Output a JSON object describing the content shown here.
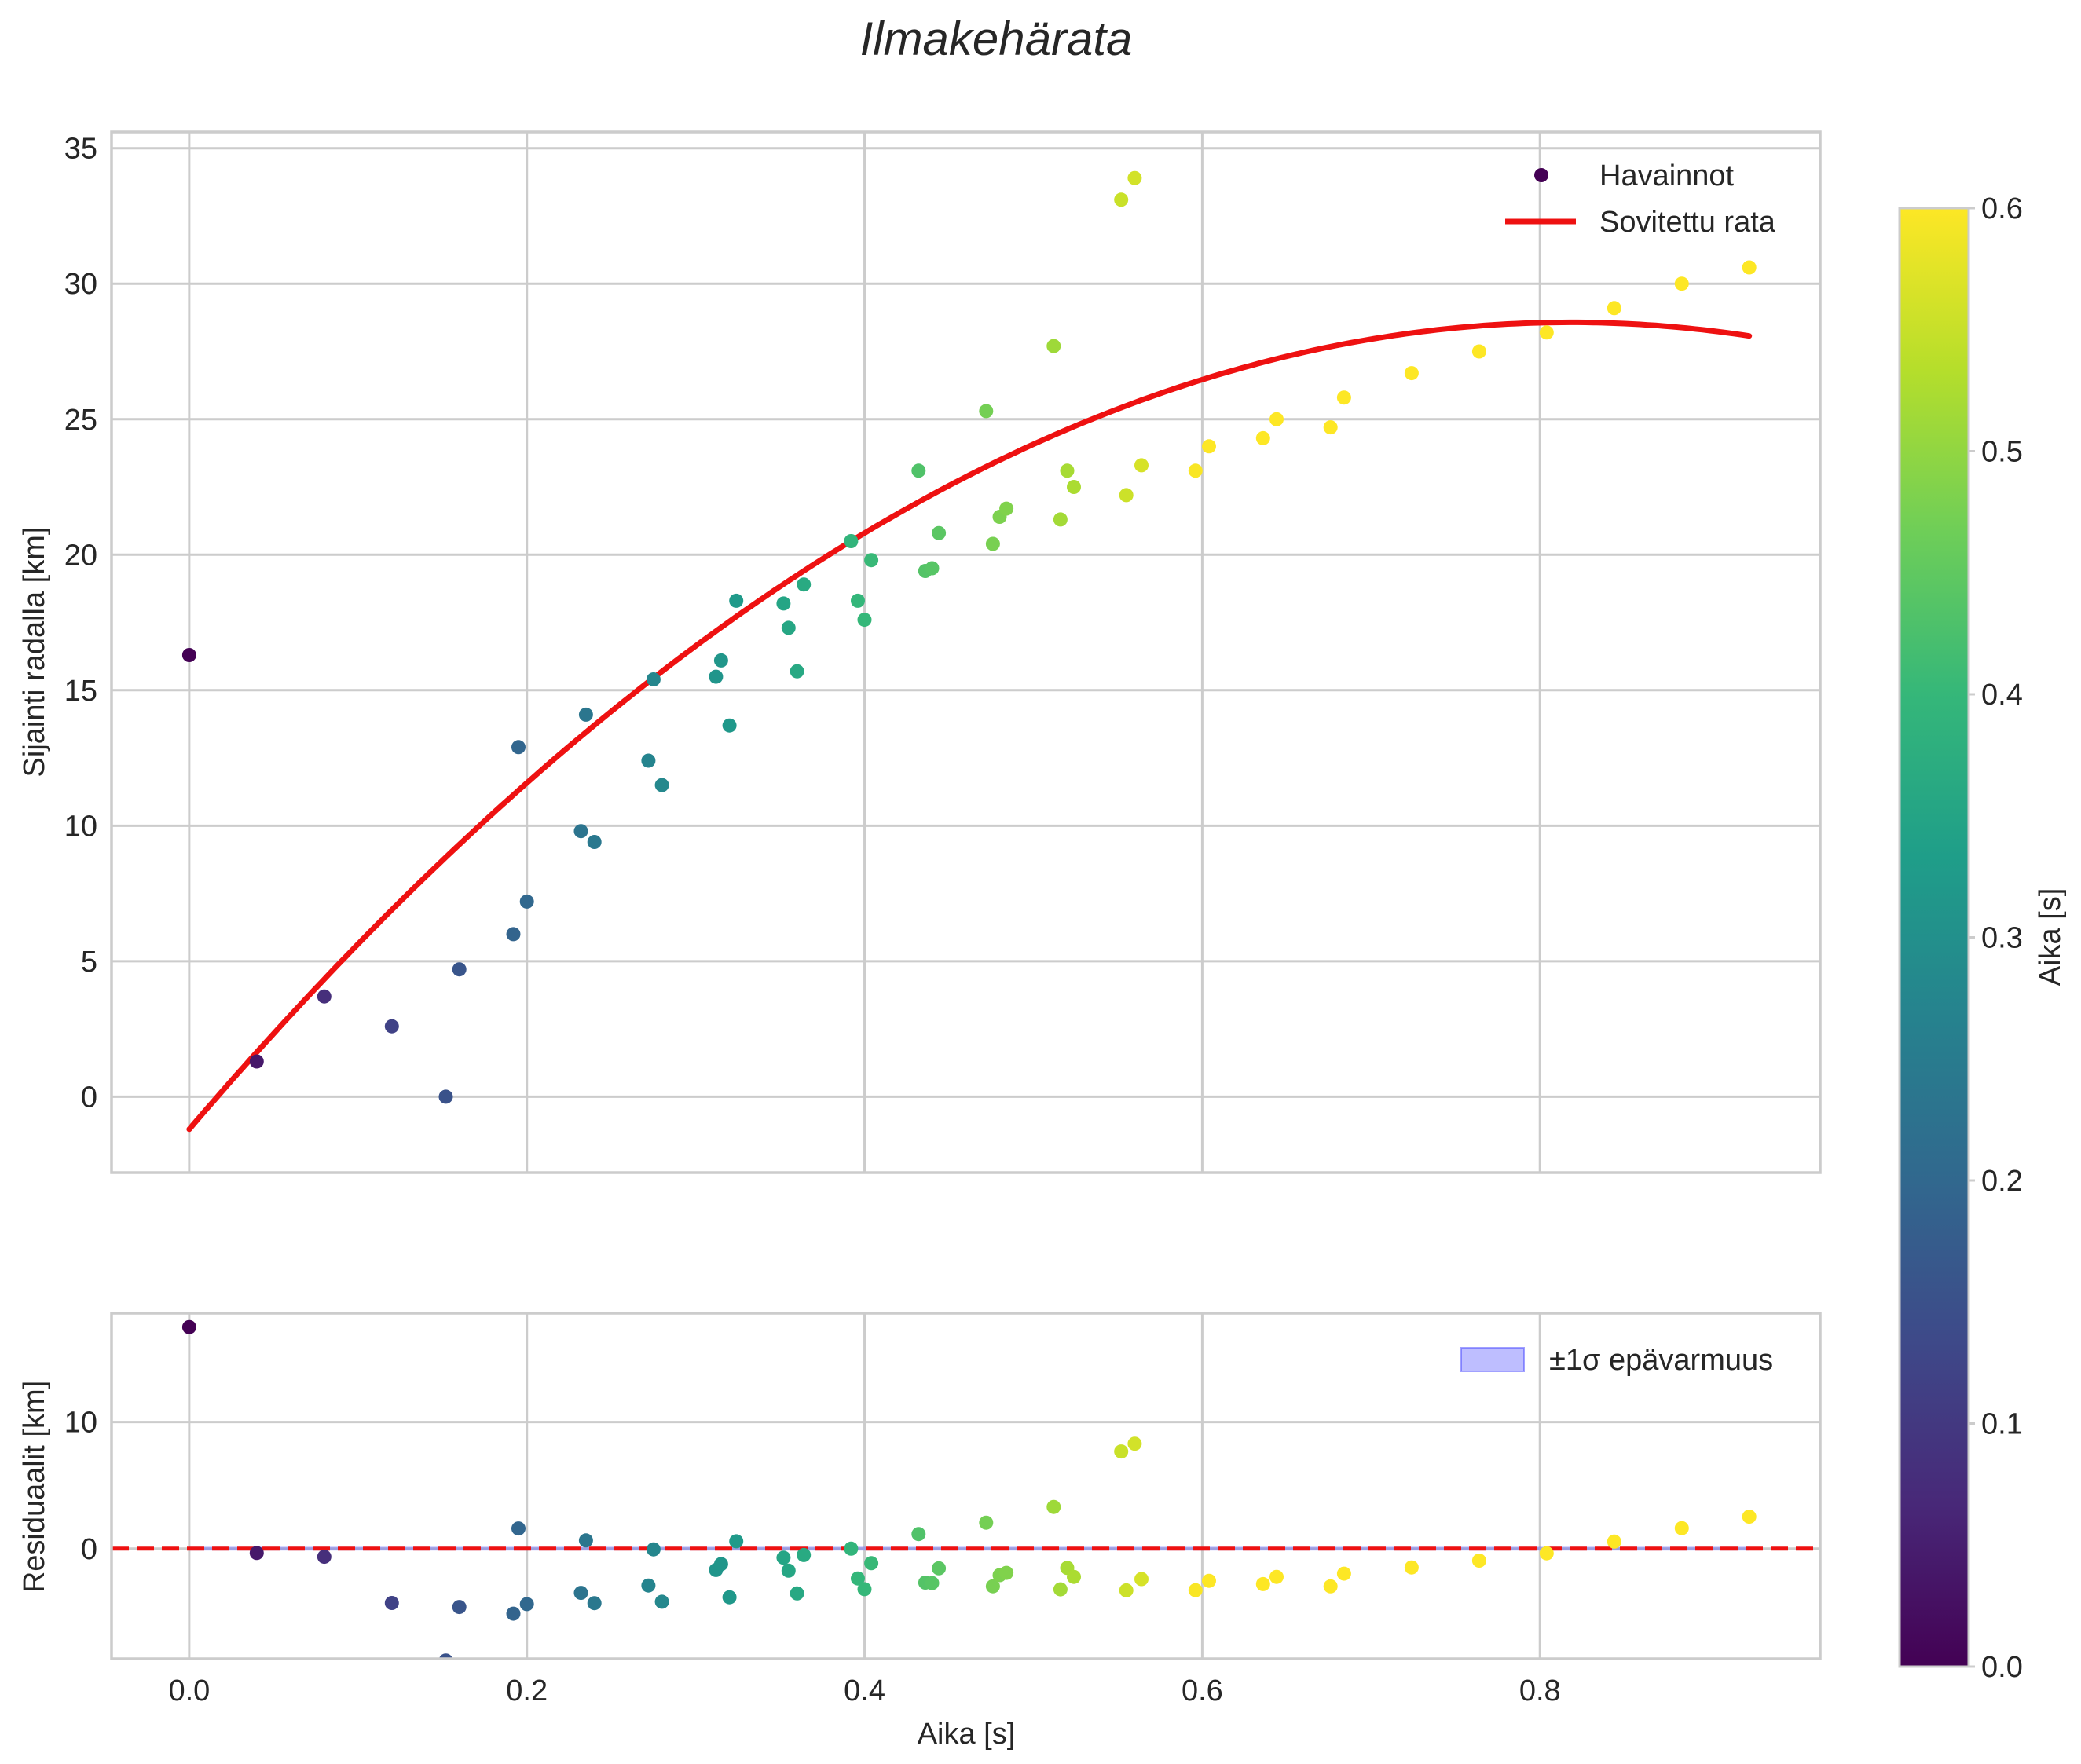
{
  "chart_data": [
    {
      "type": "scatter",
      "title": "Ilmakehärata",
      "xlabel": "Aika [s]",
      "ylabel": "Sijainti radalla [km]",
      "xlim": [
        -0.046,
        0.966
      ],
      "ylim": [
        -2.8,
        35.6
      ],
      "xticks": [
        "0.0",
        "0.2",
        "0.4",
        "0.6",
        "0.8"
      ],
      "yticks": [
        "0",
        "5",
        "10",
        "15",
        "20",
        "25",
        "30",
        "35"
      ],
      "legend": [
        "Havainnot",
        "Sovitettu rata"
      ],
      "legend_position": "upper right",
      "observations": {
        "name": "Havainnot",
        "color_by": "time",
        "points": [
          [
            0.0,
            16.3
          ],
          [
            0.04,
            1.3
          ],
          [
            0.08,
            3.7
          ],
          [
            0.12,
            2.6
          ],
          [
            0.152,
            0.0
          ],
          [
            0.16,
            4.7
          ],
          [
            0.192,
            6.0
          ],
          [
            0.195,
            12.9
          ],
          [
            0.2,
            7.2
          ],
          [
            0.232,
            9.8
          ],
          [
            0.235,
            14.1
          ],
          [
            0.24,
            9.4
          ],
          [
            0.272,
            12.4
          ],
          [
            0.275,
            15.4
          ],
          [
            0.28,
            11.5
          ],
          [
            0.312,
            15.5
          ],
          [
            0.315,
            16.1
          ],
          [
            0.32,
            13.7
          ],
          [
            0.324,
            18.3
          ],
          [
            0.352,
            18.2
          ],
          [
            0.355,
            17.3
          ],
          [
            0.36,
            15.7
          ],
          [
            0.364,
            18.9
          ],
          [
            0.392,
            20.5
          ],
          [
            0.396,
            18.3
          ],
          [
            0.4,
            17.6
          ],
          [
            0.404,
            19.8
          ],
          [
            0.432,
            23.1
          ],
          [
            0.436,
            19.4
          ],
          [
            0.44,
            19.5
          ],
          [
            0.444,
            20.8
          ],
          [
            0.472,
            25.3
          ],
          [
            0.476,
            20.4
          ],
          [
            0.48,
            21.4
          ],
          [
            0.484,
            21.7
          ],
          [
            0.512,
            27.7
          ],
          [
            0.516,
            21.3
          ],
          [
            0.52,
            23.1
          ],
          [
            0.524,
            22.5
          ],
          [
            0.552,
            33.1
          ],
          [
            0.555,
            22.2
          ],
          [
            0.56,
            33.9
          ],
          [
            0.564,
            23.3
          ],
          [
            0.596,
            23.1
          ],
          [
            0.604,
            24.0
          ],
          [
            0.636,
            24.3
          ],
          [
            0.644,
            25.0
          ],
          [
            0.676,
            24.7
          ],
          [
            0.684,
            25.8
          ],
          [
            0.724,
            26.7
          ],
          [
            0.764,
            27.5
          ],
          [
            0.804,
            28.2
          ],
          [
            0.844,
            29.1
          ],
          [
            0.884,
            30.0
          ],
          [
            0.924,
            30.6
          ]
        ]
      },
      "fit": {
        "name": "Sovitettu rata",
        "color": "#ee1111",
        "model": "y = -1.2 + 72.8*t - 44.5*t^2",
        "coefficients": [
          -1.2,
          72.8,
          -44.5
        ],
        "t_range": [
          0.0,
          0.924
        ]
      }
    },
    {
      "type": "scatter",
      "title": "",
      "xlabel": "Aika [s]",
      "ylabel": "Residuaalit [km]",
      "xlim": [
        -0.046,
        0.966
      ],
      "ylim": [
        -8.7,
        18.6
      ],
      "xticks": [
        "0.0",
        "0.2",
        "0.4",
        "0.6",
        "0.8"
      ],
      "yticks": [
        "0",
        "10"
      ],
      "legend": [
        "±1σ epävarmuus"
      ],
      "legend_position": "upper right",
      "zero_line_color": "#ee1111",
      "band_color": "#4444ff",
      "band_halfwidth": 0.15
    }
  ],
  "colorbar": {
    "label": "Aika [s]",
    "range": [
      0.0,
      0.6
    ],
    "ticks": [
      "0.0",
      "0.1",
      "0.2",
      "0.3",
      "0.4",
      "0.5",
      "0.6"
    ],
    "colormap": "viridis",
    "stops": [
      "#440154",
      "#482878",
      "#3e4989",
      "#31688e",
      "#26828e",
      "#1f9e89",
      "#35b779",
      "#6ece58",
      "#b5de2b",
      "#fde725"
    ]
  }
}
